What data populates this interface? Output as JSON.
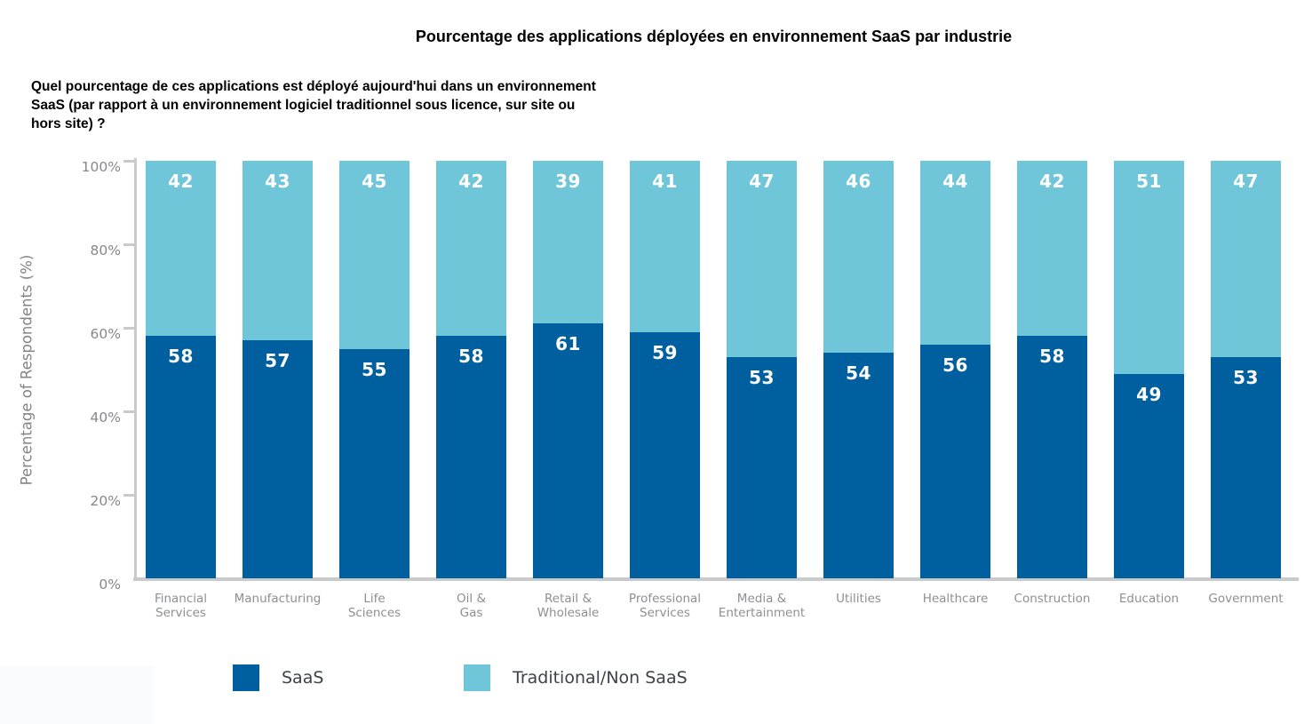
{
  "chart": {
    "title": "Pourcentage des applications déployées en environnement SaaS par industrie",
    "subtitle": "Quel pourcentage de ces applications est déployé aujourd'hui dans un environnement\nSaaS (par rapport à un environnement logiciel traditionnel sous licence, sur site ou\nhors site) ?",
    "ylabel": "Percentage of Respondents (%)",
    "legend": [
      "SaaS",
      "Traditional/Non SaaS"
    ]
  },
  "chart_data": {
    "type": "bar",
    "stacked": true,
    "title": "Pourcentage des applications déployées en environnement SaaS par industrie",
    "xlabel": "",
    "ylabel": "Percentage of Respondents (%)",
    "ylim": [
      0,
      100
    ],
    "ytick_labels": [
      "0%",
      "20%",
      "40%",
      "60%",
      "80%",
      "100%"
    ],
    "ytick_values": [
      0,
      20,
      40,
      60,
      80,
      100
    ],
    "grid": false,
    "legend_position": "bottom",
    "categories": [
      "Financial\nServices",
      "Manufacturing",
      "Life\nSciences",
      "Oil &\nGas",
      "Retail &\nWholesale",
      "Professional\nServices",
      "Media &\nEntertainment",
      "Utilities",
      "Healthcare",
      "Construction",
      "Education",
      "Government"
    ],
    "series": [
      {
        "name": "SaaS",
        "color": "#005f9e",
        "values": [
          58,
          57,
          55,
          58,
          61,
          59,
          53,
          54,
          56,
          58,
          49,
          53
        ]
      },
      {
        "name": "Traditional/Non SaaS",
        "color": "#70c6d9",
        "values": [
          42,
          43,
          45,
          42,
          39,
          41,
          47,
          46,
          44,
          42,
          51,
          47
        ]
      }
    ]
  },
  "colors": {
    "saas": "#005f9e",
    "traditional": "#70c6d9",
    "axis_line": "#c9cacb",
    "tick_label": "#85878a",
    "x_label": "#8d8f92",
    "legend_text": "#3e404a",
    "value_label": "#ffffff"
  }
}
